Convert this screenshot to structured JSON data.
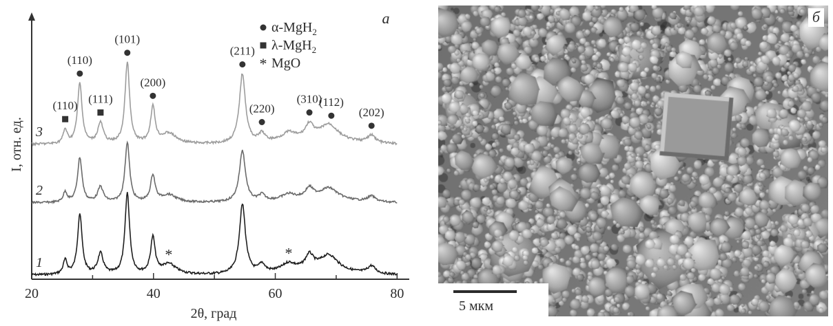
{
  "panel_a": {
    "letter": "а",
    "chart_data": {
      "type": "line",
      "xlabel": "2θ, град",
      "ylabel": "I, отн. ед.",
      "xlim": [
        20,
        82
      ],
      "xticks": [
        20,
        40,
        60,
        80
      ],
      "legend": {
        "placement": "top-right",
        "entries": [
          {
            "marker": "circle",
            "label": "α-MgH",
            "sub": "2"
          },
          {
            "marker": "square",
            "label": "λ-MgH",
            "sub": "2"
          },
          {
            "marker": "asterisk",
            "label": "MgO",
            "sub": ""
          }
        ]
      },
      "series": [
        {
          "name": "1",
          "color": "#1e1e1e",
          "offset": 0,
          "scale": 1.0,
          "noise": 1.6
        },
        {
          "name": "2",
          "color": "#6a6a6a",
          "offset": 105,
          "scale": 0.74,
          "noise": 1.4
        },
        {
          "name": "3",
          "color": "#9c9c9c",
          "offset": 190,
          "scale": 1.0,
          "noise": 1.6
        }
      ],
      "peaks": [
        {
          "pos": 25.5,
          "h": 20,
          "w": 0.4
        },
        {
          "pos": 27.9,
          "h": 88,
          "w": 0.45
        },
        {
          "pos": 31.3,
          "h": 30,
          "w": 0.55
        },
        {
          "pos": 35.7,
          "h": 118,
          "w": 0.45
        },
        {
          "pos": 39.9,
          "h": 52,
          "w": 0.45
        },
        {
          "pos": 42.5,
          "h": 15,
          "w": 1.5
        },
        {
          "pos": 54.6,
          "h": 101,
          "w": 0.6
        },
        {
          "pos": 57.8,
          "h": 12,
          "w": 0.6
        },
        {
          "pos": 62.2,
          "h": 11,
          "w": 1.3
        },
        {
          "pos": 65.6,
          "h": 20,
          "w": 0.8
        },
        {
          "pos": 68.8,
          "h": 23,
          "w": 1.8
        },
        {
          "pos": 75.8,
          "h": 11,
          "w": 0.8
        }
      ],
      "peak_labels": [
        {
          "text": "(110)",
          "pos": 25.5,
          "marker": "square",
          "series": "3"
        },
        {
          "text": "(110)",
          "pos": 27.9,
          "marker": "circle",
          "series": "3"
        },
        {
          "text": "(111)",
          "pos": 31.3,
          "marker": "square",
          "series": "3"
        },
        {
          "text": "(101)",
          "pos": 35.7,
          "marker": "circle",
          "series": "3"
        },
        {
          "text": "(200)",
          "pos": 39.9,
          "marker": "circle",
          "series": "3"
        },
        {
          "text": "(211)",
          "pos": 54.6,
          "marker": "circle",
          "series": "3"
        },
        {
          "text": "(220)",
          "pos": 57.8,
          "marker": "circle",
          "series": "3"
        },
        {
          "text": "(310)",
          "pos": 65.6,
          "marker": "circle",
          "series": "3"
        },
        {
          "text": "(112)",
          "pos": 69.2,
          "marker": "circle",
          "series": "3"
        },
        {
          "text": "(202)",
          "pos": 75.8,
          "marker": "circle",
          "series": "3"
        },
        {
          "text": "",
          "pos": 42.5,
          "marker": "asterisk",
          "series": "1"
        },
        {
          "text": "",
          "pos": 62.2,
          "marker": "asterisk",
          "series": "1"
        }
      ]
    }
  },
  "panel_b": {
    "letter": "б",
    "scale_bar_label": "5 мкм"
  }
}
